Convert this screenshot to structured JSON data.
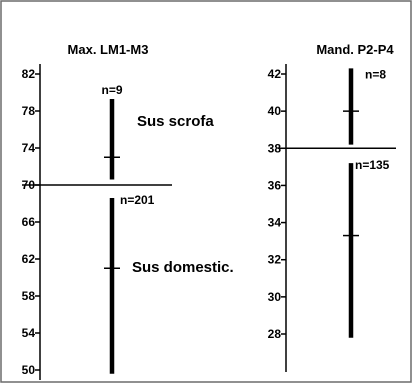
{
  "chart_data": [
    {
      "type": "range",
      "title": "Max. LM1-M3",
      "yticks": [
        "82",
        "78",
        "74",
        "70",
        "66",
        "62",
        "58",
        "54",
        "50"
      ],
      "ylim": [
        49.5,
        82.5
      ],
      "threshold": 70,
      "series": [
        {
          "name": "Sus scrofa",
          "n_label": "n=9",
          "range": [
            70.6,
            79.3
          ],
          "mean": 73.0
        },
        {
          "name": "Sus domestic.",
          "n_label": "n=201",
          "range": [
            49.6,
            68.6
          ],
          "mean": 61.0
        }
      ]
    },
    {
      "type": "range",
      "title": "Mand. P2-P4",
      "yticks": [
        "42",
        "40",
        "38",
        "36",
        "34",
        "32",
        "30",
        "28"
      ],
      "ylim": [
        26.0,
        43.0
      ],
      "threshold": 38,
      "series": [
        {
          "n_label": "n=8",
          "range": [
            38.2,
            42.3
          ],
          "mean": 40.0
        },
        {
          "n_label": "n=135",
          "range": [
            27.8,
            37.2
          ],
          "mean": 33.3
        }
      ]
    }
  ],
  "palette": {
    "border": "#6b6b6b",
    "ink": "#000000",
    "background": "#ffffff"
  }
}
